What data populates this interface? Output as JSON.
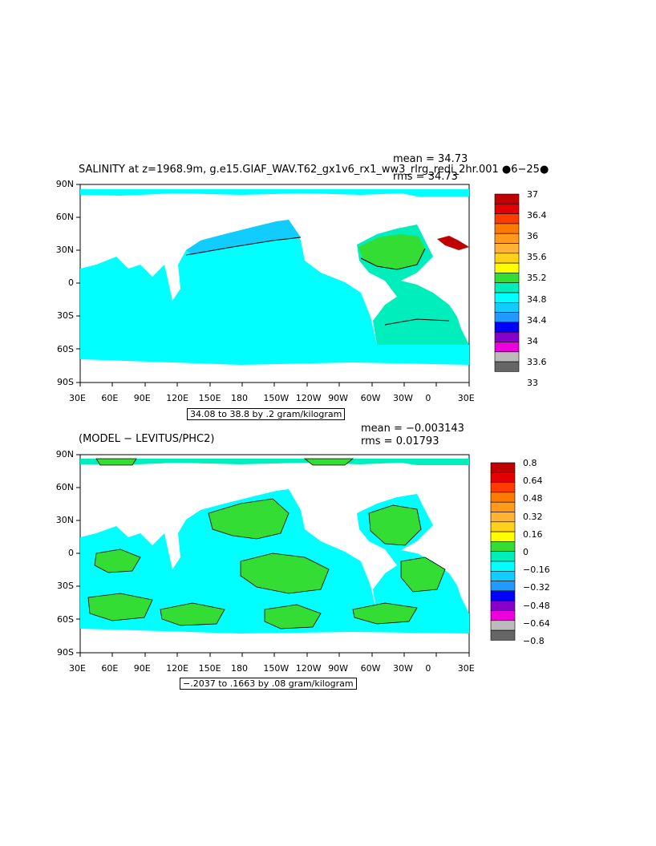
{
  "panel_top": {
    "title": "SALINITY at z=1968.9m, g.e15.GIAF_WAV.T62_gx1v6_rx1_ww3_rlrg_redi_2hr.001 ●6−25●",
    "mean": "mean = 34.73",
    "rms": "rms = 34.73",
    "contour_info": "34.08 to 38.8 by .2 gram/kilogram",
    "lat_labels": [
      "90N",
      "60N",
      "30N",
      "0",
      "30S",
      "60S",
      "90S"
    ],
    "lon_labels": [
      "30E",
      "60E",
      "90E",
      "120E",
      "150E",
      "180",
      "150W",
      "120W",
      "90W",
      "60W",
      "30W",
      "0",
      "30E"
    ],
    "colorbar_labels": [
      "37",
      "36.4",
      "36",
      "35.6",
      "35.2",
      "34.8",
      "34.4",
      "34",
      "33.6",
      "33"
    ],
    "colors": [
      "#c00000",
      "#e40000",
      "#ff3b00",
      "#ff7a00",
      "#ff9a1a",
      "#ffb233",
      "#ffd11a",
      "#ffff00",
      "#33dd33",
      "#00eebb",
      "#00ffff",
      "#11ccff",
      "#2299ff",
      "#0000ff",
      "#8800cc",
      "#ee00dd",
      "#bbbbbb",
      "#666666"
    ]
  },
  "panel_bottom": {
    "title": "(MODEL − LEVITUS/PHC2)",
    "mean": "mean = −0.003143",
    "rms": "rms = 0.01793",
    "contour_info": "−.2037 to .1663 by .08 gram/kilogram",
    "lat_labels": [
      "90N",
      "60N",
      "30N",
      "0",
      "30S",
      "60S",
      "90S"
    ],
    "lon_labels": [
      "30E",
      "60E",
      "90E",
      "120E",
      "150E",
      "180",
      "150W",
      "120W",
      "90W",
      "60W",
      "30W",
      "0",
      "30E"
    ],
    "colorbar_labels": [
      "0.8",
      "0.64",
      "0.48",
      "0.32",
      "0.16",
      "0",
      "−0.16",
      "−0.32",
      "−0.48",
      "−0.64",
      "−0.8"
    ],
    "colors": [
      "#c00000",
      "#e40000",
      "#ff3b00",
      "#ff7a00",
      "#ff9a1a",
      "#ffb233",
      "#ffd11a",
      "#ffff00",
      "#33dd33",
      "#00eebb",
      "#00ffff",
      "#11ccff",
      "#2299ff",
      "#0000ff",
      "#8800cc",
      "#ee00dd",
      "#bbbbbb",
      "#666666"
    ]
  }
}
